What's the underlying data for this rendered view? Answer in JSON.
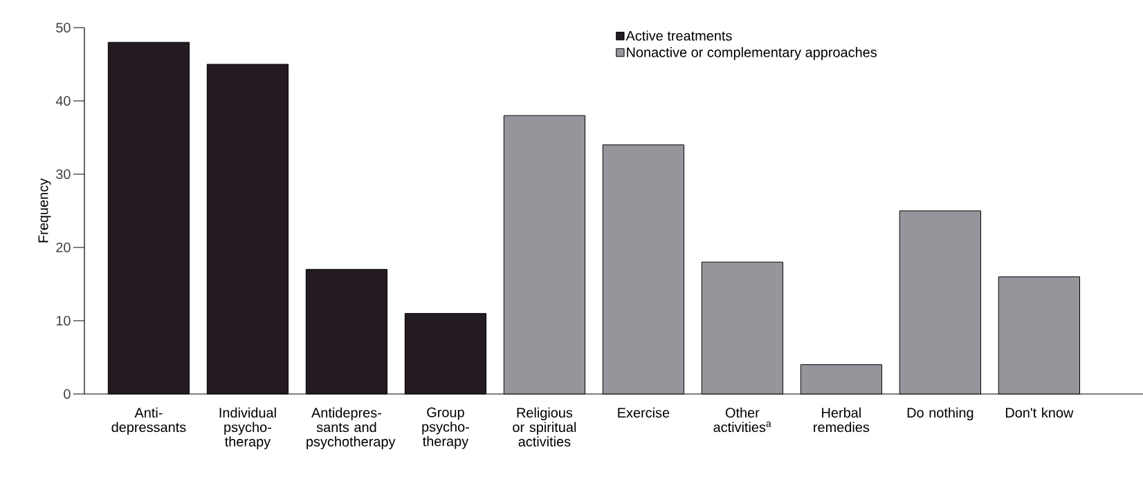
{
  "chart_data": {
    "type": "bar",
    "ylabel": "Frequency",
    "categories": [
      "Anti-depressants",
      "Individual psycho-therapy",
      "Antidepres-sants and psychotherapy",
      "Group psycho-therapy",
      "Religious or spiritual activities",
      "Exercise",
      "Other activities$^{a}$",
      "Herbal remedies",
      "Do nothing",
      "Don't know"
    ],
    "series": [
      {
        "name": "Active treatments",
        "color": "#231a22",
        "values": [
          48,
          45,
          17,
          11,
          null,
          null,
          null,
          null,
          null,
          null
        ]
      },
      {
        "name": "Nonactive or complementary approaches",
        "color": "#95959c",
        "values": [
          null,
          null,
          null,
          null,
          38,
          34,
          18,
          4,
          25,
          16
        ]
      }
    ],
    "ylim": [
      0,
      50
    ],
    "yticks": [
      0,
      10,
      20,
      30,
      40,
      50
    ],
    "grid": false,
    "legend": "top"
  }
}
